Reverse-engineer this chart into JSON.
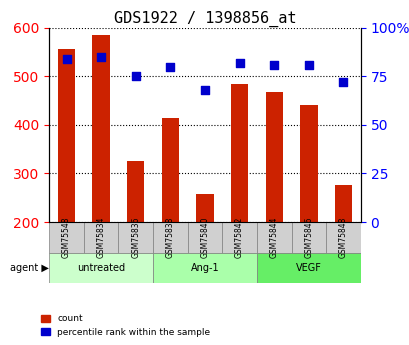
{
  "title": "GDS1922 / 1398856_at",
  "categories": [
    "GSM75548",
    "GSM75834",
    "GSM75836",
    "GSM75838",
    "GSM75840",
    "GSM75842",
    "GSM75844",
    "GSM75846",
    "GSM75848"
  ],
  "bar_values": [
    555,
    585,
    326,
    415,
    258,
    485,
    468,
    440,
    277
  ],
  "dot_values": [
    84,
    85,
    75,
    80,
    68,
    82,
    81,
    81,
    72
  ],
  "bar_color": "#cc2200",
  "dot_color": "#0000cc",
  "ylim_left": [
    200,
    600
  ],
  "ylim_right": [
    0,
    100
  ],
  "yticks_left": [
    200,
    300,
    400,
    500,
    600
  ],
  "yticks_right": [
    0,
    25,
    50,
    75,
    100
  ],
  "ytick_labels_right": [
    "0",
    "25",
    "50",
    "75",
    "100%"
  ],
  "groups": [
    {
      "label": "untreated",
      "indices": [
        0,
        1,
        2
      ],
      "color": "#ccffcc"
    },
    {
      "label": "Ang-1",
      "indices": [
        3,
        4,
        5
      ],
      "color": "#aaffaa"
    },
    {
      "label": "VEGF",
      "indices": [
        6,
        7,
        8
      ],
      "color": "#66ee66"
    }
  ],
  "agent_label": "agent",
  "legend_count_label": "count",
  "legend_pct_label": "percentile rank within the sample",
  "grid_color": "#000000",
  "background_color": "#ffffff",
  "tick_label_bg": "#dddddd"
}
